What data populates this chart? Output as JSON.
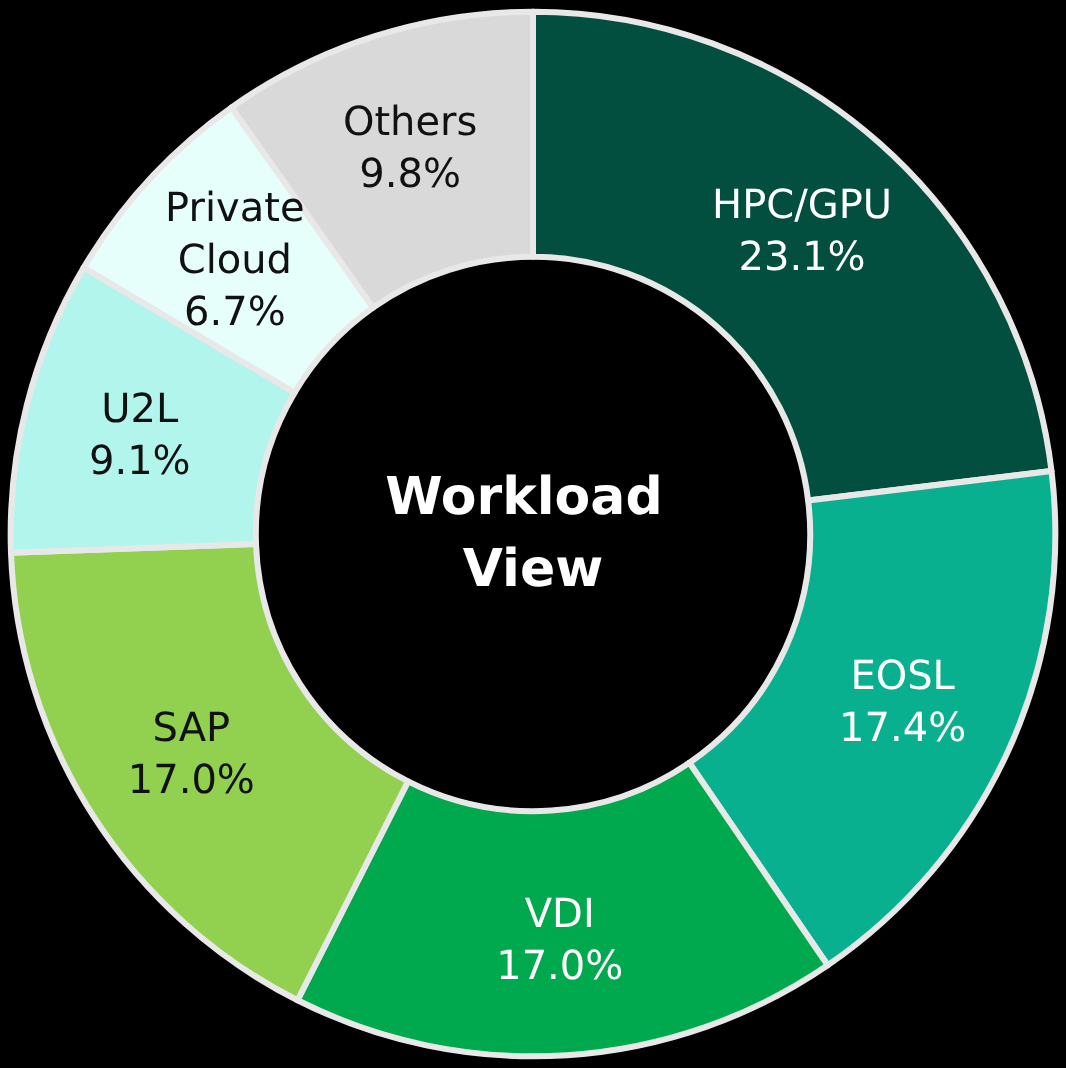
{
  "chart_data": {
    "type": "donut",
    "title": "Workload View",
    "categories": [
      "HPC/GPU",
      "EOSL",
      "VDI",
      "SAP",
      "U2L",
      "Private Cloud",
      "Others"
    ],
    "values": [
      23.1,
      17.4,
      17.0,
      17.0,
      9.1,
      6.7,
      9.8
    ],
    "colors": [
      "#024f3f",
      "#09b08f",
      "#01a94e",
      "#92d050",
      "#b2f5ec",
      "#e6fffb",
      "#d9d9d9"
    ],
    "value_labels": [
      "23.1%",
      "17.4%",
      "17.0%",
      "17.0%",
      "9.1%",
      "6.7%",
      "9.8%"
    ],
    "legend": false
  }
}
